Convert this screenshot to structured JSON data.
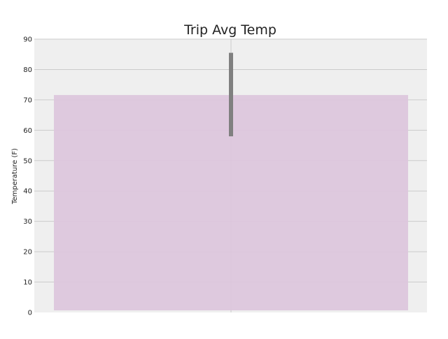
{
  "chart_data": {
    "type": "bar",
    "title": "Trip Avg Temp",
    "xlabel": "",
    "ylabel": "Temperature (F)",
    "categories": [
      ""
    ],
    "values": [
      71.6
    ],
    "error": {
      "low": 58,
      "high": 85.5
    },
    "ylim": [
      0,
      90
    ],
    "yticks": [
      0,
      10,
      20,
      30,
      40,
      50,
      60,
      70,
      80,
      90
    ],
    "ytick_labels": [
      "0",
      "10",
      "20",
      "30",
      "40",
      "50",
      "60",
      "70",
      "80",
      "90"
    ],
    "grid": true,
    "legend": "none",
    "colors": {
      "bar": "#dcc6dc",
      "error_bar": "#808080",
      "plot_bg": "#efefef",
      "grid": "#cbcbcb",
      "text": "#222222"
    }
  }
}
